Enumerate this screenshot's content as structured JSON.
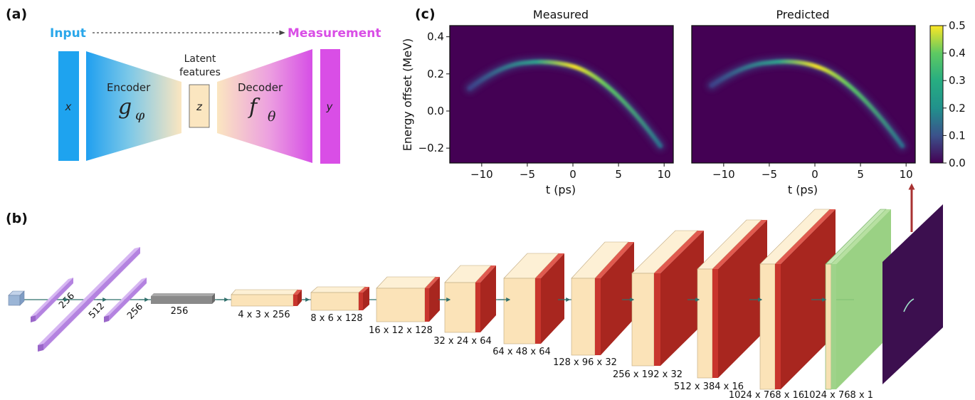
{
  "panel_a": {
    "label": "(a)",
    "input_label": "Input",
    "measurement_label": "Measurement",
    "x_symbol": "x",
    "encoder_label": "Encoder",
    "encoder_symbol": "g",
    "encoder_subscript": "φ",
    "latent_line1": "Latent",
    "latent_line2": "features",
    "z_symbol": "z",
    "decoder_label": "Decoder",
    "decoder_symbol": "f",
    "decoder_subscript": "θ",
    "y_symbol": "y",
    "colors": {
      "input": "#2aa7ea",
      "measurement": "#d94ee6",
      "box_cream": "#fbe6c0"
    }
  },
  "panel_b": {
    "label": "(b)",
    "layers": [
      {
        "text": "256"
      },
      {
        "text": "512"
      },
      {
        "text": "256"
      },
      {
        "text": "256"
      },
      {
        "text": "4 x 3 x 256"
      },
      {
        "text": "8 x 6 x 128"
      },
      {
        "text": "16 x 12 x 128"
      },
      {
        "text": "32 x 24 x 64"
      },
      {
        "text": "64 x 48 x 64"
      },
      {
        "text": "128 x 96 x 32"
      },
      {
        "text": "256 x 192 x 32"
      },
      {
        "text": "512 x 384 x 16"
      },
      {
        "text": "1024 x 768 x 16"
      },
      {
        "text": "1024 x 768 x 1"
      }
    ],
    "colors": {
      "dense": "#b483e0",
      "input_cube": "#9bb5d6",
      "cream": "#fbe3b8",
      "red": "#c8352d",
      "green": "#9fd38a",
      "output": "#3c0f4f",
      "arrow": "#a83232"
    }
  },
  "panel_c": {
    "label": "(c)",
    "chart_data": [
      {
        "type": "heatmap",
        "title": "Measured",
        "xlabel": "t (ps)",
        "ylabel": "Energy offset (MeV)",
        "xlim": [
          -13.5,
          11
        ],
        "ylim": [
          -0.28,
          0.46
        ],
        "xticks": [
          "−10",
          "−5",
          "0",
          "5",
          "10"
        ],
        "xtick_values": [
          -10,
          -5,
          0,
          5,
          10
        ],
        "yticks": [
          "−0.2",
          "0.0",
          "0.2",
          "0.4"
        ],
        "ytick_values": [
          -0.2,
          0.0,
          0.2,
          0.4
        ]
      },
      {
        "type": "heatmap",
        "title": "Predicted",
        "xlabel": "t (ps)",
        "xlim": [
          -13.5,
          11
        ],
        "ylim": [
          -0.28,
          0.46
        ],
        "xticks": [
          "−10",
          "−5",
          "0",
          "5",
          "10"
        ],
        "xtick_values": [
          -10,
          -5,
          0,
          5,
          10
        ]
      }
    ],
    "colorbar": {
      "ticks": [
        "0.0",
        "0.1",
        "0.2",
        "0.3",
        "0.4",
        "0.5"
      ],
      "tick_values": [
        0.0,
        0.1,
        0.2,
        0.3,
        0.4,
        0.5
      ],
      "range": [
        0,
        0.5
      ]
    }
  }
}
